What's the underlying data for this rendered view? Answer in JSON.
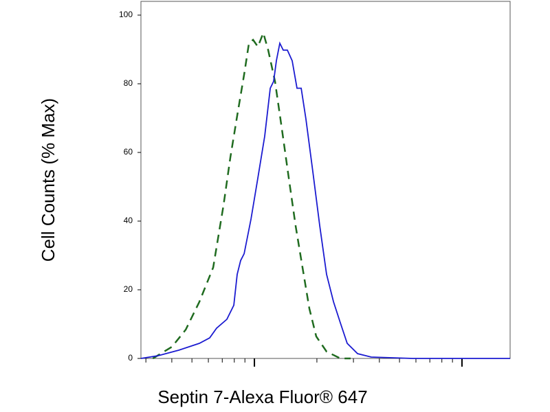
{
  "chart_data": {
    "type": "line",
    "ylabel": "Cell Counts (% Max)",
    "xlabel": "Septin 7-Alexa Fluor® 647",
    "xscale": "log",
    "xlim": [
      284,
      17060
    ],
    "xticks": [
      300,
      400,
      500,
      600,
      700,
      800,
      900,
      1000,
      2000,
      3000,
      4000,
      5000,
      6000,
      7000,
      8000,
      9000,
      10000
    ],
    "ylim": [
      0,
      104
    ],
    "yticks": [
      0,
      20,
      40,
      60,
      80,
      100
    ],
    "series": [
      {
        "color": "#1f6b1f",
        "dash": true,
        "x": [
          324,
          401,
          467,
          543,
          633,
          710,
          766,
          826,
          892,
          941,
          985,
          1039,
          1104,
          1165,
          1257,
          1357,
          1464,
          1580,
          1705,
          1840,
          1986,
          2227,
          2594,
          2908
        ],
        "values": [
          0,
          3.4,
          8.4,
          16.5,
          26.5,
          44.6,
          58.6,
          70.7,
          82.7,
          91.8,
          92.8,
          90.8,
          94.8,
          89.8,
          80.7,
          66.7,
          52.6,
          38.6,
          26.5,
          14.5,
          6.4,
          2,
          0,
          0
        ]
      },
      {
        "color": "#1a1ad0",
        "dash": false,
        "x": [
          284,
          344,
          432,
          543,
          609,
          657,
          737,
          796,
          826,
          858,
          892,
          963,
          1039,
          1121,
          1192,
          1238,
          1276,
          1326,
          1377,
          1442,
          1521,
          1604,
          1680,
          1771,
          1910,
          2064,
          2227,
          2404,
          2594,
          2799,
          3140,
          3655,
          5777,
          17060
        ],
        "values": [
          0,
          0.8,
          2.4,
          4.4,
          6,
          8.8,
          11.4,
          15.5,
          24.5,
          28.5,
          30.5,
          40.6,
          52.6,
          64.7,
          78.7,
          80.7,
          86.7,
          91.8,
          89.8,
          89.8,
          86.7,
          78.7,
          78.7,
          69.7,
          54.6,
          38.6,
          24.5,
          16.5,
          10.4,
          4.4,
          1.4,
          0.4,
          0,
          0
        ]
      }
    ]
  }
}
